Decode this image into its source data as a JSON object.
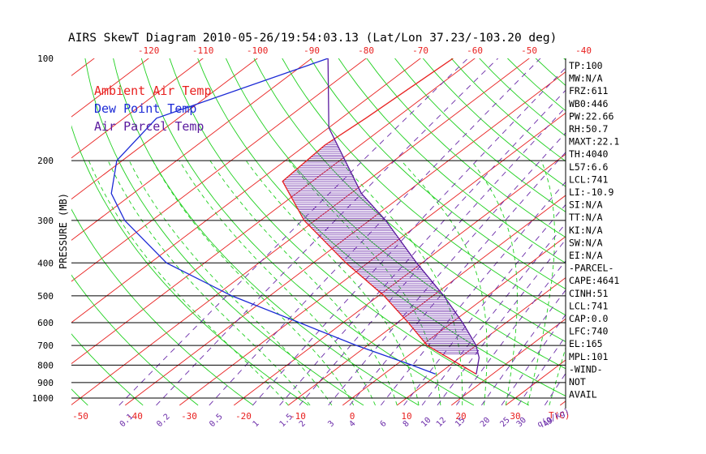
{
  "chart_data": {
    "type": "line",
    "title": "AIRS SkewT Diagram 2010-05-26/19:54:03.13 (Lat/Lon 37.23/-103.20 deg)",
    "ylabel": "PRESSURE (MB)",
    "xlabel": "T(C)",
    "mixing_ratio_label": "q(g/kg)",
    "y_scale": "log",
    "ylim": [
      1000,
      100
    ],
    "xlim_bottom": [
      -53,
      36
    ],
    "pressure_ticks": [
      "100",
      "200",
      "300",
      "400",
      "500",
      "600",
      "700",
      "800",
      "900",
      "1000"
    ],
    "bottom_temp_ticks": [
      "-50",
      "-40",
      "-30",
      "-20",
      "-10",
      "0",
      "10",
      "20",
      "30"
    ],
    "top_temp_ticks": [
      "-120",
      "-110",
      "-100",
      "-90",
      "-80",
      "-70",
      "-60",
      "-50",
      "-40"
    ],
    "mixing_ratio_ticks": [
      "0.1",
      "0.2",
      "0.5",
      "1",
      "1.5",
      "2",
      "3",
      "4",
      "6",
      "8",
      "10",
      "12",
      "15",
      "20",
      "25",
      "30",
      "40"
    ],
    "legend": [
      {
        "label": "Ambient Air Temp",
        "color": "#e8201f"
      },
      {
        "label": "Dew Point Temp",
        "color": "#1c2ad6"
      },
      {
        "label": "Air Parcel Temp",
        "color": "#5a1a9e"
      }
    ],
    "series": [
      {
        "name": "Ambient Air Temp",
        "color": "#e8201f",
        "points": [
          {
            "p": 100,
            "t": -64
          },
          {
            "p": 150,
            "t": -65.5
          },
          {
            "p": 180,
            "t": -66.5
          },
          {
            "p": 230,
            "t": -65.5
          },
          {
            "p": 300,
            "t": -52
          },
          {
            "p": 400,
            "t": -34
          },
          {
            "p": 500,
            "t": -19
          },
          {
            "p": 600,
            "t": -8
          },
          {
            "p": 700,
            "t": 1
          },
          {
            "p": 800,
            "t": 12
          },
          {
            "p": 850,
            "t": 17
          }
        ]
      },
      {
        "name": "Dew Point Temp",
        "color": "#1c2ad6",
        "points": [
          {
            "p": 100,
            "t": -87
          },
          {
            "p": 150,
            "t": -104
          },
          {
            "p": 200,
            "t": -101
          },
          {
            "p": 250,
            "t": -94
          },
          {
            "p": 300,
            "t": -85
          },
          {
            "p": 400,
            "t": -67
          },
          {
            "p": 500,
            "t": -47
          },
          {
            "p": 600,
            "t": -28
          },
          {
            "p": 700,
            "t": -12
          },
          {
            "p": 800,
            "t": 3
          },
          {
            "p": 850,
            "t": 9.5
          }
        ]
      },
      {
        "name": "Air Parcel Temp",
        "color": "#5a1a9e",
        "points": [
          {
            "p": 100,
            "t": -87
          },
          {
            "p": 160,
            "t": -70
          },
          {
            "p": 200,
            "t": -59
          },
          {
            "p": 250,
            "t": -48
          },
          {
            "p": 300,
            "t": -37
          },
          {
            "p": 400,
            "t": -21
          },
          {
            "p": 500,
            "t": -8
          },
          {
            "p": 600,
            "t": 2
          },
          {
            "p": 700,
            "t": 10
          },
          {
            "p": 760,
            "t": 13.5
          },
          {
            "p": 850,
            "t": 17
          }
        ]
      }
    ],
    "indices": [
      "TP:100",
      "MW:N/A",
      "FRZ:611",
      "WB0:446",
      "PW:22.66",
      "RH:50.7",
      "MAXT:22.1",
      "TH:4040",
      "L57:6.6",
      "LCL:741",
      "LI:-10.9",
      "SI:N/A",
      "TT:N/A",
      "KI:N/A",
      "SW:N/A",
      "EI:N/A",
      "-PARCEL-",
      "CAPE:4641",
      "CINH:51",
      "LCL:741",
      "CAP:0.0",
      "LFC:740",
      "EL:165",
      "MPL:101",
      "-WIND-",
      "NOT",
      "AVAIL"
    ],
    "colors": {
      "isotherm": "#e8201f",
      "dry_adiabat": "#1fd01f",
      "moist_adiabat": "#1fd01f",
      "mixing_ratio": "#6a2aa8",
      "hatch": "#6a2aa8",
      "isobar": "#000000",
      "tick_red": "#e8201f",
      "tick_purple": "#6a2aa8"
    }
  }
}
